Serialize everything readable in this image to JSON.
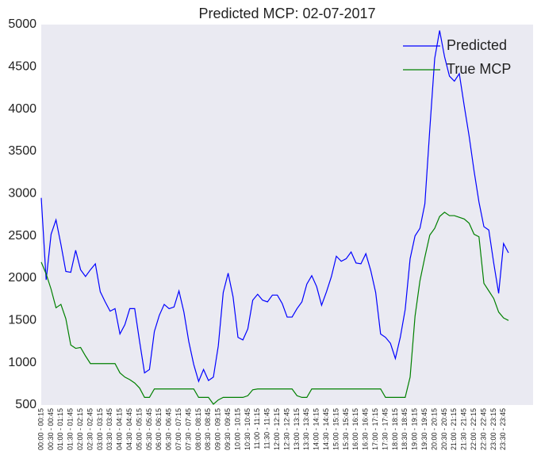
{
  "chart_data": {
    "type": "line",
    "title": "Predicted MCP: 02-07-2017",
    "categories": [
      "00:00 - 00:15",
      null,
      "00:30 - 00:45",
      null,
      "01:00 - 01:15",
      null,
      "01:30 - 01:45",
      null,
      "02:00 - 02:15",
      null,
      "02:30 - 02:45",
      null,
      "03:00 - 03:15",
      null,
      "03:30 - 03:45",
      null,
      "04:00 - 04:15",
      null,
      "04:30 - 04:45",
      null,
      "05:00 - 05:15",
      null,
      "05:30 - 05:45",
      null,
      "06:00 - 06:15",
      null,
      "06:30 - 06:45",
      null,
      "07:00 - 07:15",
      null,
      "07:30 - 07:45",
      null,
      "08:00 - 08:15",
      null,
      "08:30 - 08:45",
      null,
      "09:00 - 09:15",
      null,
      "09:30 - 09:45",
      null,
      "10:00 - 10:15",
      null,
      "10:30 - 10:45",
      null,
      "11:00 - 11:15",
      null,
      "11:30 - 11:45",
      null,
      "12:00 - 12:15",
      null,
      "12:30 - 12:45",
      null,
      "13:00 - 13:15",
      null,
      "13:30 - 13:45",
      null,
      "14:00 - 14:15",
      null,
      "14:30 - 14:45",
      null,
      "15:00 - 15:15",
      null,
      "15:30 - 15:45",
      null,
      "16:00 - 16:15",
      null,
      "16:30 - 16:45",
      null,
      "17:00 - 17:15",
      null,
      "17:30 - 17:45",
      null,
      "18:00 - 18:15",
      null,
      "18:30 - 18:45",
      null,
      "19:00 - 19:15",
      null,
      "19:30 - 19:45",
      null,
      "20:00 - 20:15",
      null,
      "20:30 - 20:45",
      null,
      "21:00 - 21:15",
      null,
      "21:30 - 21:45",
      null,
      "22:00 - 22:15",
      null,
      "22:30 - 22:45",
      null,
      "23:00 - 23:15",
      null,
      "23:30 - 23:45",
      null
    ],
    "series": [
      {
        "name": "Predicted",
        "color": "#0000ff",
        "values": [
          2950,
          1980,
          2520,
          2690,
          2400,
          2080,
          2070,
          2330,
          2100,
          2020,
          2100,
          2170,
          1840,
          1720,
          1610,
          1640,
          1340,
          1450,
          1640,
          1640,
          1250,
          880,
          920,
          1370,
          1560,
          1690,
          1640,
          1660,
          1850,
          1600,
          1250,
          980,
          780,
          920,
          790,
          830,
          1200,
          1830,
          2060,
          1780,
          1300,
          1270,
          1400,
          1740,
          1810,
          1740,
          1720,
          1800,
          1800,
          1700,
          1540,
          1540,
          1640,
          1720,
          1930,
          2030,
          1900,
          1680,
          1840,
          2020,
          2260,
          2200,
          2230,
          2310,
          2180,
          2170,
          2290,
          2090,
          1830,
          1340,
          1300,
          1230,
          1050,
          1300,
          1630,
          2230,
          2500,
          2590,
          2880,
          3760,
          4600,
          4930,
          4620,
          4390,
          4330,
          4420,
          4040,
          3680,
          3270,
          2900,
          2610,
          2570,
          2180,
          1820,
          2410,
          2300
        ]
      },
      {
        "name": "True MCP",
        "color": "#008000",
        "values": [
          2190,
          2050,
          1870,
          1650,
          1690,
          1520,
          1210,
          1170,
          1180,
          1080,
          990,
          990,
          990,
          990,
          990,
          990,
          880,
          830,
          800,
          760,
          700,
          590,
          590,
          690,
          690,
          690,
          690,
          690,
          690,
          690,
          690,
          690,
          590,
          590,
          590,
          510,
          560,
          590,
          590,
          590,
          590,
          590,
          610,
          680,
          690,
          690,
          690,
          690,
          690,
          690,
          690,
          690,
          610,
          590,
          590,
          690,
          690,
          690,
          690,
          690,
          690,
          690,
          690,
          690,
          690,
          690,
          690,
          690,
          690,
          690,
          590,
          590,
          590,
          590,
          590,
          830,
          1550,
          1970,
          2250,
          2510,
          2590,
          2730,
          2780,
          2740,
          2740,
          2720,
          2700,
          2650,
          2520,
          2490,
          1940,
          1850,
          1760,
          1600,
          1530,
          1500
        ]
      }
    ],
    "ylim": [
      500,
      5000
    ],
    "yticks": [
      500,
      1000,
      1500,
      2000,
      2500,
      3000,
      3500,
      4000,
      4500,
      5000
    ],
    "grid": false,
    "legend": "upper right"
  }
}
